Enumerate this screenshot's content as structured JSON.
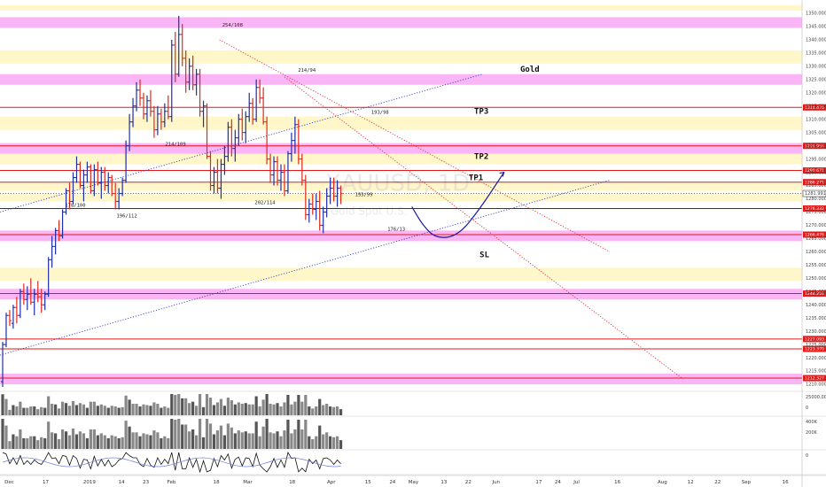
{
  "chart_data": {
    "type": "candlestick",
    "symbol_watermark": "XAUUSD, 1D",
    "symbol_subtitle": "Gold Spot U.S.",
    "title": "Gold",
    "ylim": [
      1208,
      1355
    ],
    "xlim": [
      "2018-11-30",
      "2019-09-22"
    ],
    "price_ticks": [
      1210,
      1215,
      1220,
      1225,
      1230,
      1235,
      1240,
      1245,
      1250,
      1255,
      1260,
      1265,
      1270,
      1275,
      1280,
      1285,
      1290,
      1295,
      1300,
      1305,
      1310,
      1315,
      1320,
      1325,
      1330,
      1335,
      1340,
      1345,
      1350
    ],
    "date_ticks": [
      {
        "date": "2018-12-03",
        "label": "Dec"
      },
      {
        "date": "2018-12-17",
        "label": "17"
      },
      {
        "date": "2019-01-01",
        "label": "2019"
      },
      {
        "date": "2019-01-14",
        "label": "14"
      },
      {
        "date": "2019-01-23",
        "label": "23"
      },
      {
        "date": "2019-02-01",
        "label": "Feb"
      },
      {
        "date": "2019-02-18",
        "label": "18"
      },
      {
        "date": "2019-03-01",
        "label": "Mar"
      },
      {
        "date": "2019-03-18",
        "label": "18"
      },
      {
        "date": "2019-04-01",
        "label": "Apr"
      },
      {
        "date": "2019-04-15",
        "label": "15"
      },
      {
        "date": "2019-04-24",
        "label": "24"
      },
      {
        "date": "2019-05-01",
        "label": "May"
      },
      {
        "date": "2019-05-13",
        "label": "13"
      },
      {
        "date": "2019-05-22",
        "label": "22"
      },
      {
        "date": "2019-06-01",
        "label": "Jun"
      },
      {
        "date": "2019-06-17",
        "label": "17"
      },
      {
        "date": "2019-06-24",
        "label": "24"
      },
      {
        "date": "2019-07-01",
        "label": "Jul"
      },
      {
        "date": "2019-07-16",
        "label": "16"
      },
      {
        "date": "2019-08-01",
        "label": "Aug"
      },
      {
        "date": "2019-08-12",
        "label": "12"
      },
      {
        "date": "2019-08-22",
        "label": "22"
      },
      {
        "date": "2019-09-01",
        "label": "Sep"
      },
      {
        "date": "2019-09-16",
        "label": "16"
      }
    ],
    "level_lines": [
      {
        "price": 1314.476,
        "label": "1314.476"
      },
      {
        "price": 1299.959,
        "label": "1299.959"
      },
      {
        "price": 1290.671,
        "label": "1290.671"
      },
      {
        "price": 1286.271,
        "label": "1286.271"
      },
      {
        "price": 1276.332,
        "label": "1276.332"
      },
      {
        "price": 1266.476,
        "label": "1266.476"
      },
      {
        "price": 1244.251,
        "label": "1244.251"
      },
      {
        "price": 1227.093,
        "label": "1227.093"
      },
      {
        "price": 1223.37,
        "label": "1223.370"
      },
      {
        "price": 1212.327,
        "label": "1212.327"
      }
    ],
    "current_price": {
      "price": 1281.991,
      "label": "1281.991"
    },
    "magenta_zones": [
      [
        1344.5,
        1348.5
      ],
      [
        1323,
        1327
      ],
      [
        1297,
        1301
      ],
      [
        1264,
        1268
      ],
      [
        1242,
        1246
      ],
      [
        1210,
        1214
      ]
    ],
    "yellow_zones": [
      [
        1351,
        1353
      ],
      [
        1331,
        1336
      ],
      [
        1306,
        1311
      ],
      [
        1293,
        1297
      ],
      [
        1283,
        1286
      ],
      [
        1279,
        1282
      ],
      [
        1249,
        1254
      ]
    ],
    "target_labels": [
      {
        "text": "TP3",
        "date": "2019-05-24",
        "price": 1312
      },
      {
        "text": "TP2",
        "date": "2019-05-24",
        "price": 1295
      },
      {
        "text": "TP1",
        "date": "2019-05-22",
        "price": 1287
      },
      {
        "text": "SL",
        "date": "2019-05-26",
        "price": 1258
      },
      {
        "text": "Gold",
        "date": "2019-06-10",
        "price": 1328
      }
    ],
    "swing_labels": [
      {
        "text": "254/108",
        "date": "2019-02-20",
        "price": 1345
      },
      {
        "text": "214/109",
        "date": "2019-01-30",
        "price": 1300
      },
      {
        "text": "214/94",
        "date": "2019-03-20",
        "price": 1328
      },
      {
        "text": "193/98",
        "date": "2019-04-16",
        "price": 1312
      },
      {
        "text": "193/99",
        "date": "2019-04-10",
        "price": 1281
      },
      {
        "text": "202/114",
        "date": "2019-03-04",
        "price": 1278
      },
      {
        "text": "196/112",
        "date": "2019-01-12",
        "price": 1273
      },
      {
        "text": "178/100",
        "date": "2018-12-24",
        "price": 1277
      },
      {
        "text": "176/13",
        "date": "2019-04-22",
        "price": 1268
      }
    ],
    "trend_lines": [
      {
        "style": "blue-dotted",
        "from": [
          "2018-11-30",
          1221
        ],
        "to": [
          "2019-07-13",
          1287
        ]
      },
      {
        "style": "blue-dotted",
        "from": [
          "2018-11-30",
          1275
        ],
        "to": [
          "2019-05-27",
          1327
        ]
      },
      {
        "style": "red-dotted",
        "from": [
          "2019-02-19",
          1340
        ],
        "to": [
          "2019-07-13",
          1260
        ]
      },
      {
        "style": "red-dotted",
        "from": [
          "2019-03-15",
          1326
        ],
        "to": [
          "2019-08-09",
          1212
        ]
      }
    ],
    "projection_path": [
      [
        "2019-05-01",
        1277
      ],
      [
        "2019-05-05",
        1270
      ],
      [
        "2019-05-10",
        1265
      ],
      [
        "2019-05-18",
        1266
      ],
      [
        "2019-05-26",
        1276
      ],
      [
        "2019-06-04",
        1290
      ]
    ],
    "candles": [
      [
        1,
        1211,
        1226,
        1209,
        1225
      ],
      [
        2,
        1225,
        1237,
        1224,
        1236
      ],
      [
        3,
        1236,
        1238,
        1232,
        1234
      ],
      [
        4,
        1233,
        1240,
        1231,
        1239
      ],
      [
        5,
        1239,
        1243,
        1233,
        1236
      ],
      [
        6,
        1236,
        1246,
        1235,
        1245
      ],
      [
        7,
        1245,
        1248,
        1240,
        1242
      ],
      [
        8,
        1242,
        1247,
        1238,
        1244
      ],
      [
        9,
        1244,
        1250,
        1240,
        1241
      ],
      [
        10,
        1241,
        1246,
        1236,
        1244
      ],
      [
        11,
        1244,
        1249,
        1241,
        1243
      ],
      [
        12,
        1243,
        1246,
        1237,
        1240
      ],
      [
        13,
        1240,
        1245,
        1238,
        1244
      ],
      [
        14,
        1244,
        1258,
        1243,
        1257
      ],
      [
        15,
        1257,
        1266,
        1254,
        1262
      ],
      [
        16,
        1262,
        1269,
        1259,
        1268
      ],
      [
        17,
        1268,
        1272,
        1264,
        1266
      ],
      [
        18,
        1266,
        1276,
        1265,
        1275
      ],
      [
        19,
        1275,
        1284,
        1274,
        1283
      ],
      [
        20,
        1283,
        1286,
        1276,
        1279
      ],
      [
        21,
        1279,
        1290,
        1278,
        1288
      ],
      [
        22,
        1288,
        1296,
        1286,
        1293
      ],
      [
        23,
        1293,
        1294,
        1284,
        1285
      ],
      [
        24,
        1285,
        1291,
        1279,
        1289
      ],
      [
        25,
        1289,
        1294,
        1286,
        1292
      ],
      [
        26,
        1292,
        1293,
        1282,
        1283
      ],
      [
        27,
        1283,
        1293,
        1281,
        1291
      ],
      [
        28,
        1291,
        1294,
        1285,
        1286
      ],
      [
        29,
        1286,
        1292,
        1280,
        1290
      ],
      [
        30,
        1290,
        1292,
        1283,
        1285
      ],
      [
        31,
        1285,
        1290,
        1282,
        1288
      ],
      [
        32,
        1288,
        1289,
        1281,
        1282
      ],
      [
        33,
        1282,
        1286,
        1276,
        1279
      ],
      [
        34,
        1279,
        1284,
        1276,
        1282
      ],
      [
        35,
        1282,
        1288,
        1281,
        1287
      ],
      [
        36,
        1287,
        1302,
        1286,
        1300
      ],
      [
        37,
        1300,
        1312,
        1298,
        1309
      ],
      [
        38,
        1309,
        1318,
        1307,
        1315
      ],
      [
        39,
        1315,
        1324,
        1313,
        1321
      ],
      [
        40,
        1321,
        1325,
        1315,
        1318
      ],
      [
        41,
        1318,
        1320,
        1310,
        1312
      ],
      [
        42,
        1312,
        1319,
        1309,
        1317
      ],
      [
        43,
        1317,
        1321,
        1311,
        1313
      ],
      [
        44,
        1313,
        1315,
        1303,
        1306
      ],
      [
        45,
        1306,
        1315,
        1304,
        1312
      ],
      [
        46,
        1312,
        1314,
        1306,
        1309
      ],
      [
        47,
        1309,
        1316,
        1307,
        1313
      ],
      [
        48,
        1313,
        1319,
        1310,
        1311
      ],
      [
        49,
        1311,
        1340,
        1309,
        1338
      ],
      [
        50,
        1338,
        1343,
        1324,
        1327
      ],
      [
        51,
        1327,
        1349,
        1326,
        1342
      ],
      [
        52,
        1342,
        1346,
        1330,
        1333
      ],
      [
        53,
        1333,
        1336,
        1320,
        1324
      ],
      [
        54,
        1324,
        1333,
        1321,
        1330
      ],
      [
        55,
        1330,
        1334,
        1321,
        1323
      ],
      [
        56,
        1323,
        1329,
        1319,
        1327
      ],
      [
        57,
        1327,
        1329,
        1311,
        1313
      ],
      [
        58,
        1313,
        1317,
        1307,
        1315
      ],
      [
        59,
        1315,
        1316,
        1295,
        1296
      ],
      [
        60,
        1296,
        1298,
        1283,
        1285
      ],
      [
        61,
        1285,
        1292,
        1282,
        1290
      ],
      [
        62,
        1290,
        1295,
        1282,
        1284
      ],
      [
        63,
        1284,
        1295,
        1280,
        1293
      ],
      [
        64,
        1293,
        1300,
        1289,
        1296
      ],
      [
        65,
        1296,
        1309,
        1294,
        1307
      ],
      [
        66,
        1307,
        1310,
        1296,
        1299
      ],
      [
        67,
        1299,
        1306,
        1294,
        1303
      ],
      [
        68,
        1303,
        1312,
        1300,
        1310
      ],
      [
        69,
        1310,
        1314,
        1302,
        1305
      ],
      [
        70,
        1305,
        1313,
        1301,
        1311
      ],
      [
        71,
        1311,
        1320,
        1309,
        1316
      ],
      [
        72,
        1316,
        1318,
        1308,
        1310
      ],
      [
        73,
        1310,
        1325,
        1309,
        1322
      ],
      [
        74,
        1322,
        1325,
        1316,
        1318
      ],
      [
        75,
        1318,
        1322,
        1308,
        1309
      ],
      [
        76,
        1309,
        1311,
        1293,
        1295
      ],
      [
        77,
        1295,
        1297,
        1286,
        1289
      ],
      [
        78,
        1289,
        1296,
        1285,
        1294
      ],
      [
        79,
        1294,
        1296,
        1285,
        1287
      ],
      [
        80,
        1287,
        1293,
        1283,
        1290
      ],
      [
        81,
        1290,
        1293,
        1281,
        1283
      ],
      [
        82,
        1283,
        1298,
        1282,
        1297
      ],
      [
        83,
        1297,
        1305,
        1294,
        1302
      ],
      [
        84,
        1302,
        1311,
        1297,
        1308
      ],
      [
        85,
        1308,
        1310,
        1293,
        1295
      ],
      [
        86,
        1295,
        1297,
        1285,
        1287
      ],
      [
        87,
        1287,
        1289,
        1272,
        1274
      ],
      [
        88,
        1274,
        1280,
        1271,
        1278
      ],
      [
        89,
        1278,
        1282,
        1274,
        1276
      ],
      [
        90,
        1276,
        1282,
        1272,
        1279
      ],
      [
        91,
        1279,
        1283,
        1268,
        1270
      ],
      [
        92,
        1270,
        1277,
        1267,
        1275
      ],
      [
        93,
        1275,
        1284,
        1273,
        1281
      ],
      [
        94,
        1281,
        1288,
        1278,
        1284
      ],
      [
        95,
        1284,
        1288,
        1279,
        1281
      ],
      [
        96,
        1281,
        1287,
        1277,
        1284
      ],
      [
        97,
        1284,
        1285,
        1278,
        1282
      ]
    ],
    "indicator_panels": [
      {
        "type": "volume",
        "tick_labels": [
          "25000.00",
          "0"
        ]
      },
      {
        "type": "volume",
        "tick_labels": [
          "400K",
          "200K"
        ]
      },
      {
        "type": "oscillator",
        "tick_labels": [
          "0"
        ]
      }
    ]
  }
}
